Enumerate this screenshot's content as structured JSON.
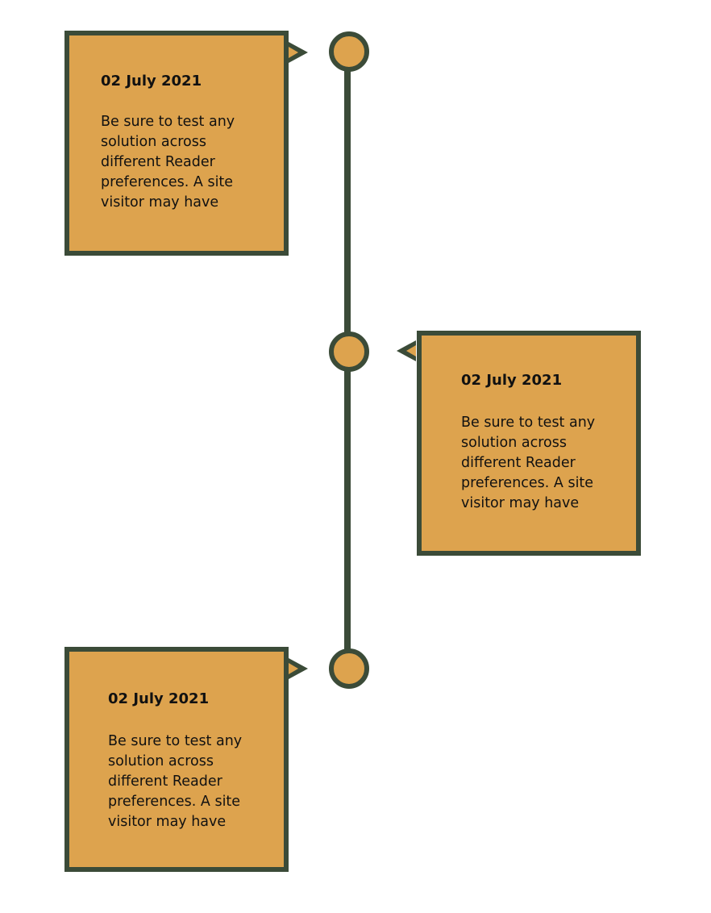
{
  "colors": {
    "accent": "#dda34e",
    "line": "#3b4b38",
    "text": "#111111"
  },
  "timeline": {
    "entries": [
      {
        "date": "02 July 2021",
        "text": "Be sure to test any solution across different Reader preferences. A site visitor may have"
      },
      {
        "date": "02 July 2021",
        "text": "Be sure to test any solution across different Reader preferences. A site visitor may have"
      },
      {
        "date": "02 July 2021",
        "text": "Be sure to test any solution across different Reader preferences. A site visitor may have"
      }
    ]
  }
}
